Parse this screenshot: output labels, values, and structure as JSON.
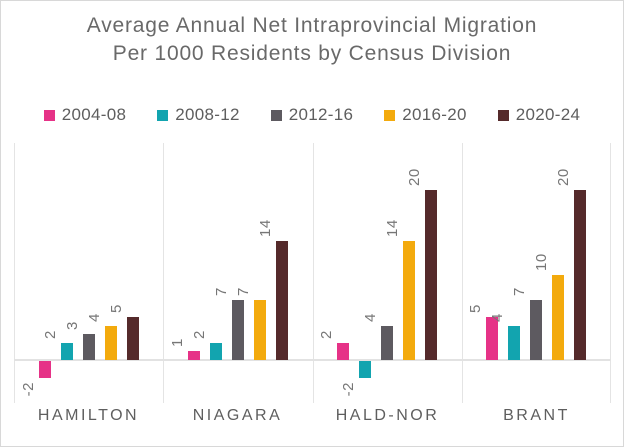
{
  "title": "Average Annual Net Intraprovincial Migration Per 1000 Residents by Census Division",
  "chart_data": {
    "type": "bar",
    "title": "Average Annual Net Intraprovincial Migration Per 1000 Residents by Census Division",
    "categories": [
      "HAMILTON",
      "NIAGARA",
      "HALD-NOR",
      "BRANT"
    ],
    "series": [
      {
        "name": "2004-08",
        "color": "#e63287",
        "values": [
          -2,
          1,
          2,
          5
        ]
      },
      {
        "name": "2008-12",
        "color": "#12a4af",
        "values": [
          2,
          2,
          -2,
          4
        ]
      },
      {
        "name": "2012-16",
        "color": "#5d5a60",
        "values": [
          3,
          7,
          4,
          7
        ]
      },
      {
        "name": "2016-20",
        "color": "#f3aa0d",
        "values": [
          4,
          7,
          14,
          10
        ]
      },
      {
        "name": "2020-24",
        "color": "#552a2b",
        "values": [
          5,
          14,
          20,
          20
        ]
      }
    ],
    "data_labels": "values shown above bars, rotated 90 degrees counterclockwise",
    "xlabel": "",
    "ylabel": "",
    "ylim": [
      -5,
      25.5
    ],
    "yaxis_visible": false,
    "grid": "vertical category separators and zero baseline only",
    "legend_position": "top",
    "text_color_title": "#696969",
    "text_color_labels": "#767676",
    "text_color_axis": "#5e5e5e",
    "gridline_color": "#e4e4e4"
  }
}
